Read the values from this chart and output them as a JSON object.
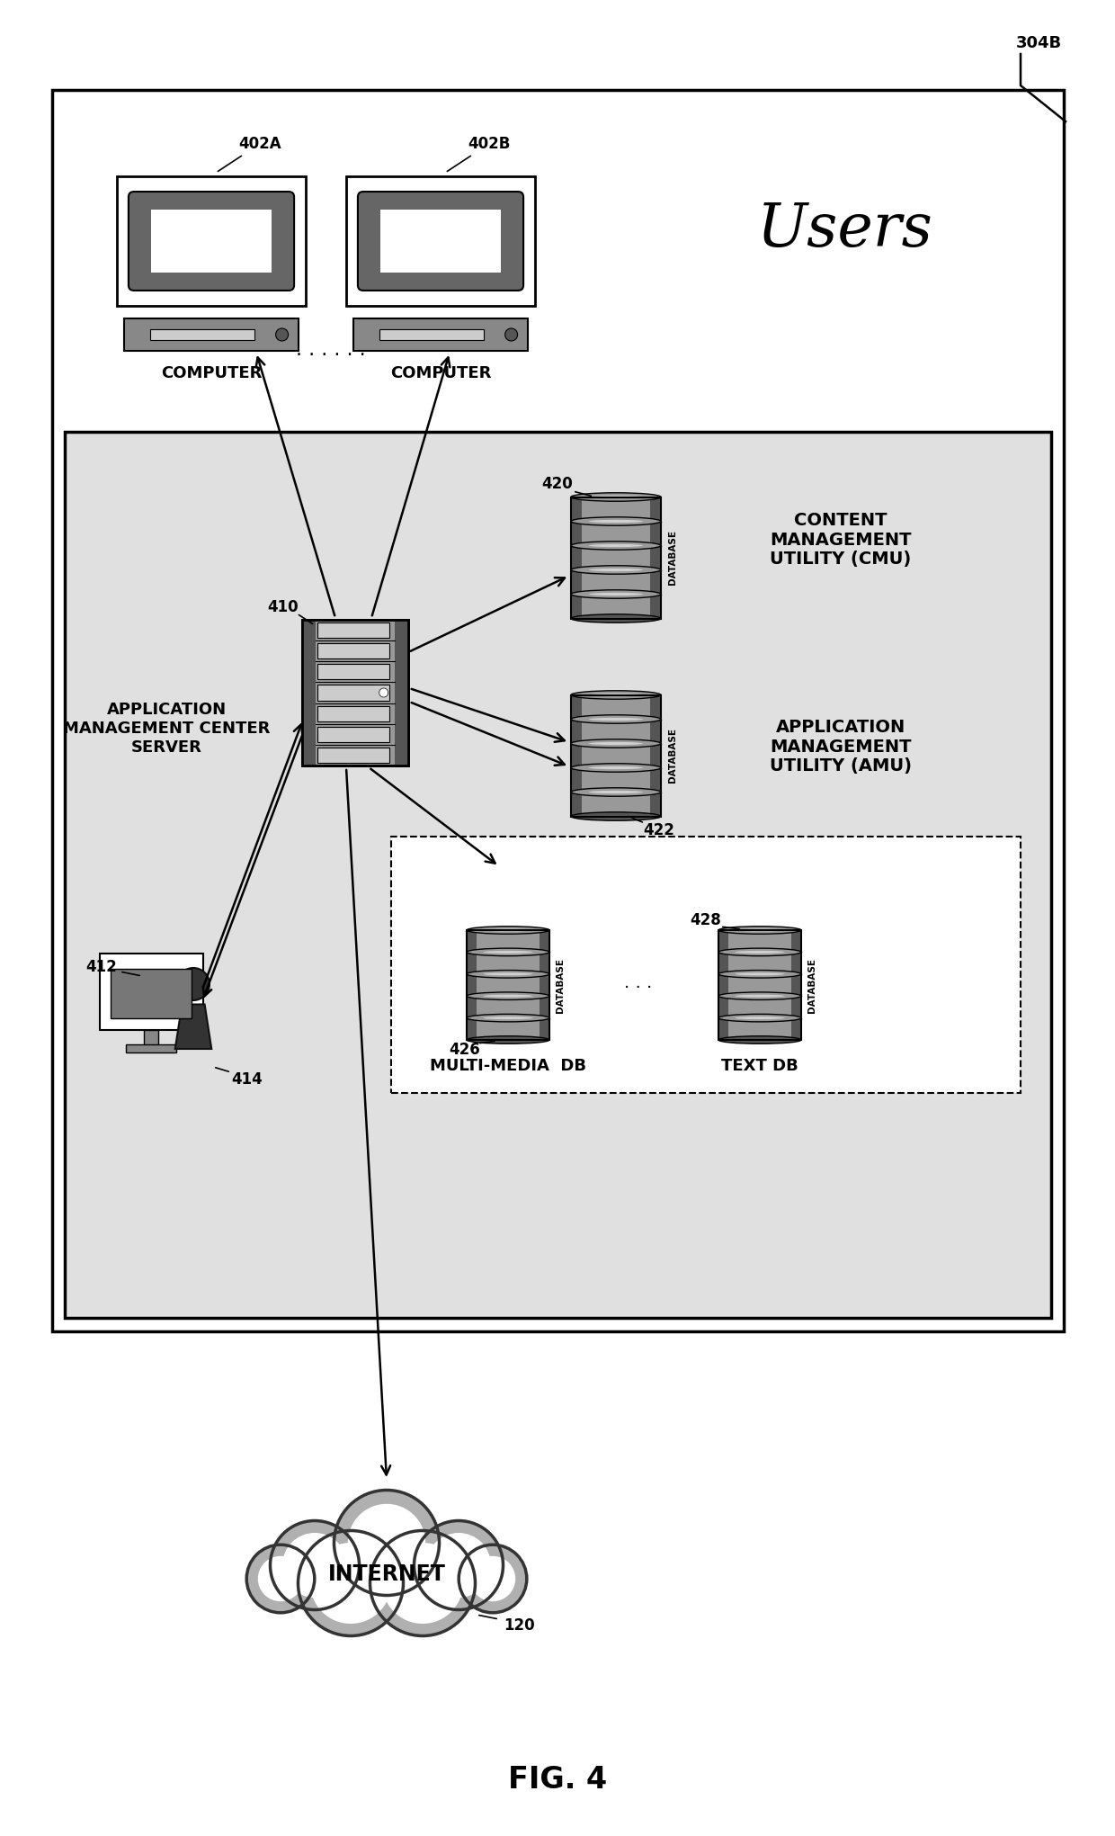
{
  "title": "FIG. 4",
  "label_304B": "304B",
  "label_402A": "402A",
  "label_402B": "402B",
  "label_410": "410",
  "label_412": "412",
  "label_414": "414",
  "label_420": "420",
  "label_422": "422",
  "label_426": "426",
  "label_428": "428",
  "label_120": "120",
  "text_users": "Users",
  "text_computer": "COMPUTER",
  "text_app_server": "APPLICATION\nMANAGEMENT CENTER\nSERVER",
  "text_cmu": "CONTENT\nMANAGEMENT\nUTILITY (CMU)",
  "text_amu": "APPLICATION\nMANAGEMENT\nUTILITY (AMU)",
  "text_multimedia": "MULTI-MEDIA  DB",
  "text_textdb": "TEXT DB",
  "text_internet": "INTERNET",
  "text_database": "DATABASE",
  "bg_color": "#ffffff",
  "inner_bg": "#e0e0e0"
}
